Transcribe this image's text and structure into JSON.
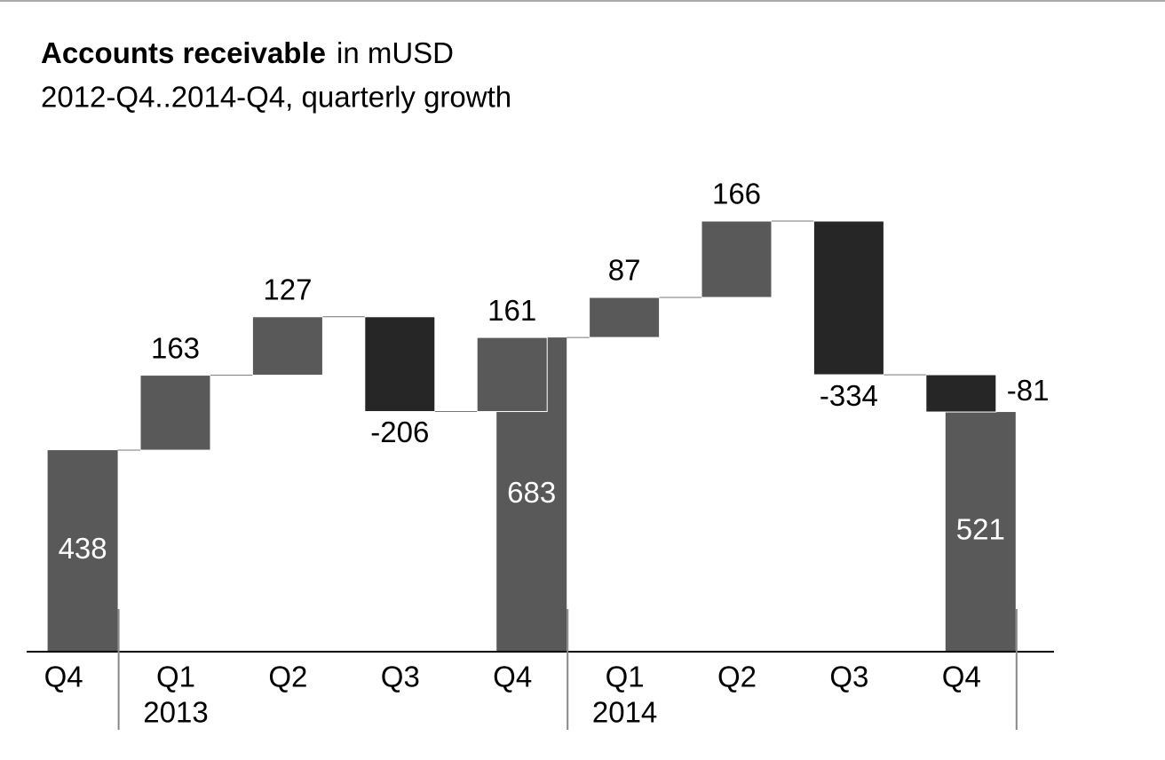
{
  "chart_data": {
    "type": "waterfall",
    "title": "Accounts receivable",
    "unit": "in mUSD",
    "subtitle": "2012-Q4..2014-Q4, quarterly growth",
    "categories": [
      "Q4",
      "Q1",
      "Q2",
      "Q3",
      "Q4",
      "Q1",
      "Q2",
      "Q3",
      "Q4"
    ],
    "years": [
      null,
      "2013",
      null,
      null,
      null,
      "2014",
      null,
      null,
      null
    ],
    "deltas": [
      null,
      163,
      127,
      -206,
      161,
      87,
      166,
      -334,
      -81
    ],
    "totals": [
      438,
      null,
      null,
      null,
      683,
      null,
      null,
      null,
      521
    ],
    "colors": {
      "total": "#595959",
      "increase": "#595959",
      "decrease": "#262626"
    }
  }
}
